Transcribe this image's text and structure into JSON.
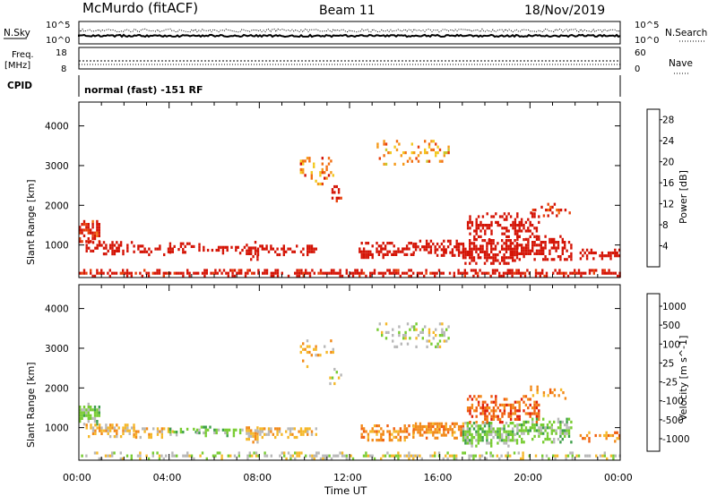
{
  "header": {
    "station": "McMurdo (fitACF)",
    "beam": "Beam 11",
    "date": "18/Nov/2019"
  },
  "top_panels": {
    "nsky_label": "N.Sky",
    "nsky_ticks": [
      "10^5",
      "10^0"
    ],
    "nsearch_label": "N.Search",
    "nsearch_ticks": [
      "10^5",
      "10^0"
    ],
    "freq_label": "Freq.",
    "freq_unit": "[MHz]",
    "freq_ticks": [
      "18",
      "8"
    ],
    "nave_label": "Nave",
    "nave_ticks": [
      "60",
      "0"
    ],
    "cpid_label": "CPID",
    "cpid_text": "normal (fast) -151 RF"
  },
  "chart_data": [
    {
      "type": "heatmap",
      "id": "power",
      "ylabel": "Slant Range [km]",
      "yticks": [
        "4000",
        "3000",
        "2000",
        "1000"
      ],
      "ytick_values": [
        4000,
        3000,
        2000,
        1000
      ],
      "ylim": [
        180,
        4600
      ],
      "xlim_hours": [
        0,
        24
      ],
      "xticks": [
        "00:00",
        "04:00",
        "08:00",
        "12:00",
        "16:00",
        "20:00",
        "00:00"
      ],
      "colorbar": {
        "label": "Power [dB]",
        "ticks": [
          "28",
          "24",
          "20",
          "16",
          "12",
          "8",
          "4"
        ],
        "range": [
          0,
          30
        ],
        "colors": [
          "#0000ff",
          "#1e3aa8",
          "#2e5b92",
          "#3f8a6e",
          "#4caf50",
          "#8dbf3c",
          "#c9c72a",
          "#f2c81f",
          "#f59a1a",
          "#f26f12",
          "#e8400b",
          "#d41406"
        ]
      },
      "bands": [
        {
          "t0": 0.0,
          "t1": 0.9,
          "r0": 1050,
          "r1": 1600,
          "level": 11,
          "density": 0.85
        },
        {
          "t0": 0.3,
          "t1": 2.4,
          "r0": 740,
          "r1": 1100,
          "level": 15,
          "density": 0.7
        },
        {
          "t0": 2.4,
          "t1": 4.2,
          "r0": 720,
          "r1": 1000,
          "level": 14,
          "density": 0.6
        },
        {
          "t0": 4.0,
          "t1": 5.2,
          "r0": 780,
          "r1": 1000,
          "level": 13,
          "density": 0.5
        },
        {
          "t0": 5.2,
          "t1": 7.4,
          "r0": 760,
          "r1": 980,
          "level": 14,
          "density": 0.55
        },
        {
          "t0": 7.4,
          "t1": 7.9,
          "r0": 600,
          "r1": 1050,
          "level": 24,
          "density": 0.9
        },
        {
          "t0": 7.9,
          "t1": 10.5,
          "r0": 720,
          "r1": 980,
          "level": 19,
          "density": 0.75
        },
        {
          "t0": 9.8,
          "t1": 11.3,
          "r0": 2500,
          "r1": 3200,
          "level": 9,
          "density": 0.3
        },
        {
          "t0": 11.1,
          "t1": 11.6,
          "r0": 2000,
          "r1": 2500,
          "level": 12,
          "density": 0.4
        },
        {
          "t0": 13.2,
          "t1": 16.4,
          "r0": 3000,
          "r1": 3600,
          "level": 8,
          "density": 0.3
        },
        {
          "t0": 12.4,
          "t1": 14.8,
          "r0": 650,
          "r1": 1050,
          "level": 17,
          "density": 0.7
        },
        {
          "t0": 14.8,
          "t1": 17.0,
          "r0": 700,
          "r1": 1100,
          "level": 19,
          "density": 0.8
        },
        {
          "t0": 17.0,
          "t1": 19.4,
          "r0": 500,
          "r1": 1100,
          "level": 22,
          "density": 0.85
        },
        {
          "t0": 17.2,
          "t1": 20.4,
          "r0": 1100,
          "r1": 1750,
          "level": 15,
          "density": 0.6
        },
        {
          "t0": 19.4,
          "t1": 21.8,
          "r0": 600,
          "r1": 1200,
          "level": 17,
          "density": 0.65
        },
        {
          "t0": 20.0,
          "t1": 21.8,
          "r0": 1700,
          "r1": 2000,
          "level": 11,
          "density": 0.35
        },
        {
          "t0": 22.2,
          "t1": 24.0,
          "r0": 620,
          "r1": 880,
          "level": 20,
          "density": 0.6
        },
        {
          "t0": 0.0,
          "t1": 24.0,
          "r0": 180,
          "r1": 330,
          "level": 12,
          "density": 0.7
        }
      ]
    },
    {
      "type": "heatmap",
      "id": "velocity",
      "ylabel": "Slant Range [km]",
      "yticks": [
        "4000",
        "3000",
        "2000",
        "1000"
      ],
      "ytick_values": [
        4000,
        3000,
        2000,
        1000
      ],
      "ylim": [
        180,
        4600
      ],
      "xlim_hours": [
        0,
        24
      ],
      "xlabel": "Time UT",
      "xticks": [
        "00:00",
        "04:00",
        "08:00",
        "12:00",
        "16:00",
        "20:00",
        "00:00"
      ],
      "colorbar": {
        "label": "Velocity [m s^-1]",
        "ticks": [
          "1000",
          "500",
          "100",
          "25",
          "-25",
          "-100",
          "-500",
          "-1000"
        ],
        "colors": [
          "#1133cc",
          "#2a7a4a",
          "#3ea04a",
          "#78cc32",
          "#b8b8b8",
          "#f5b82a",
          "#f28a1a",
          "#f05f0f",
          "#e02008"
        ]
      },
      "bands": [
        {
          "t0": 0.0,
          "t1": 0.9,
          "r0": 1050,
          "r1": 1600,
          "level": 3,
          "density": 0.8
        },
        {
          "t0": 0.3,
          "t1": 2.4,
          "r0": 740,
          "r1": 1100,
          "level": 5,
          "density": 0.7
        },
        {
          "t0": 2.4,
          "t1": 4.2,
          "r0": 720,
          "r1": 1000,
          "level": 5,
          "density": 0.6
        },
        {
          "t0": 4.0,
          "t1": 5.2,
          "r0": 780,
          "r1": 1000,
          "level": 3,
          "density": 0.5
        },
        {
          "t0": 5.2,
          "t1": 7.4,
          "r0": 760,
          "r1": 980,
          "level": 3,
          "density": 0.55
        },
        {
          "t0": 7.4,
          "t1": 7.9,
          "r0": 600,
          "r1": 1050,
          "level": 5,
          "density": 0.9
        },
        {
          "t0": 7.9,
          "t1": 10.5,
          "r0": 720,
          "r1": 980,
          "level": 5,
          "density": 0.75
        },
        {
          "t0": 9.8,
          "t1": 11.3,
          "r0": 2500,
          "r1": 3200,
          "level": 5,
          "density": 0.3
        },
        {
          "t0": 11.1,
          "t1": 11.6,
          "r0": 2000,
          "r1": 2500,
          "level": 4,
          "density": 0.4
        },
        {
          "t0": 13.2,
          "t1": 16.4,
          "r0": 3000,
          "r1": 3600,
          "level": 4,
          "density": 0.3
        },
        {
          "t0": 12.4,
          "t1": 14.8,
          "r0": 650,
          "r1": 1050,
          "level": 6,
          "density": 0.7
        },
        {
          "t0": 14.8,
          "t1": 17.0,
          "r0": 700,
          "r1": 1100,
          "level": 6,
          "density": 0.8
        },
        {
          "t0": 17.0,
          "t1": 19.4,
          "r0": 500,
          "r1": 1100,
          "level": 3,
          "density": 0.85
        },
        {
          "t0": 17.2,
          "t1": 20.4,
          "r0": 1100,
          "r1": 1750,
          "level": 7,
          "density": 0.6
        },
        {
          "t0": 19.4,
          "t1": 21.8,
          "r0": 600,
          "r1": 1200,
          "level": 3,
          "density": 0.65
        },
        {
          "t0": 20.0,
          "t1": 21.8,
          "r0": 1700,
          "r1": 2000,
          "level": 6,
          "density": 0.35
        },
        {
          "t0": 22.2,
          "t1": 24.0,
          "r0": 620,
          "r1": 880,
          "level": 6,
          "density": 0.6
        },
        {
          "t0": 0.0,
          "t1": 24.0,
          "r0": 180,
          "r1": 330,
          "level": 4,
          "density": 0.5
        }
      ]
    }
  ]
}
